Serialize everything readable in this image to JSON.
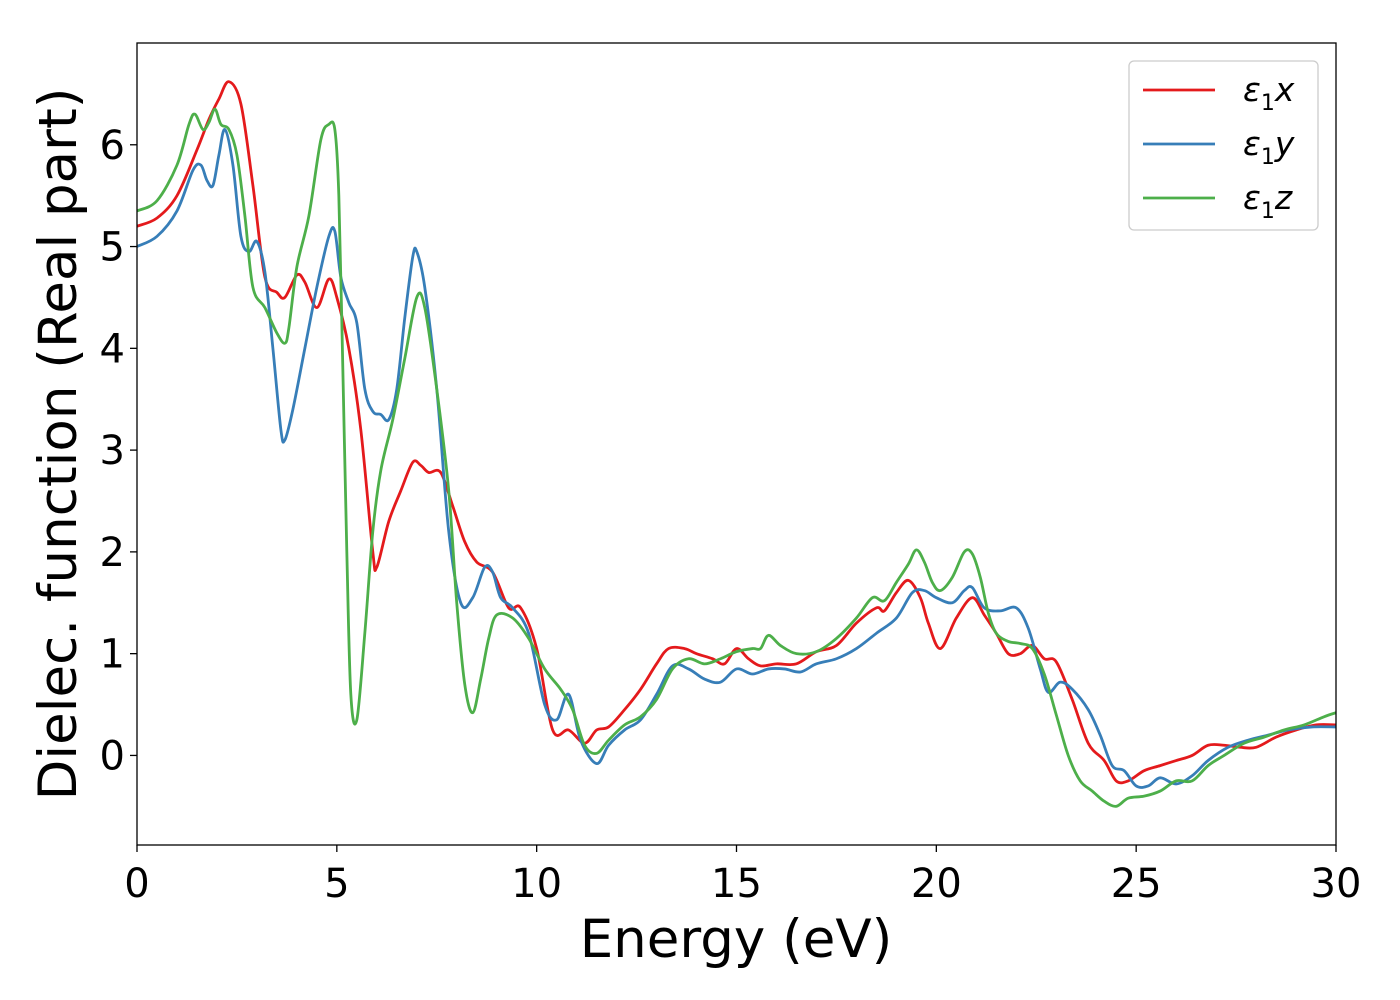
{
  "chart_data": {
    "type": "line",
    "xlabel": "Energy (eV)",
    "ylabel": "Dielec. function (Real part)",
    "xlim": [
      0,
      30
    ],
    "ylim": [
      -0.88,
      7.0
    ],
    "xticks": [
      0,
      5,
      10,
      15,
      20,
      25,
      30
    ],
    "yticks": [
      0,
      1,
      2,
      3,
      4,
      5,
      6
    ],
    "grid": false,
    "legend_position": "top-right",
    "series": [
      {
        "name": "ε1x",
        "legend_base": "ε",
        "legend_sub": "1",
        "legend_tail": "x",
        "color": "#e41a1c",
        "x": [
          0,
          0.5,
          1.0,
          1.5,
          1.8,
          2.05,
          2.3,
          2.6,
          2.9,
          3.2,
          3.5,
          3.7,
          4.0,
          4.2,
          4.5,
          4.8,
          5.0,
          5.3,
          5.6,
          5.9,
          6.0,
          6.3,
          6.6,
          6.9,
          7.1,
          7.3,
          7.6,
          7.9,
          8.2,
          8.5,
          8.9,
          9.3,
          9.6,
          10.0,
          10.4,
          10.8,
          11.2,
          11.5,
          11.8,
          12.2,
          12.6,
          13.0,
          13.3,
          13.7,
          14.0,
          14.4,
          14.7,
          15.0,
          15.3,
          15.6,
          16.0,
          16.5,
          17.0,
          17.5,
          18.0,
          18.5,
          18.7,
          19.0,
          19.3,
          19.6,
          19.8,
          20.1,
          20.5,
          20.9,
          21.2,
          21.5,
          21.8,
          22.1,
          22.4,
          22.7,
          23.0,
          23.4,
          23.8,
          24.2,
          24.5,
          24.8,
          25.2,
          25.6,
          26.0,
          26.4,
          26.8,
          27.2,
          27.6,
          28.0,
          28.5,
          29.0,
          29.5,
          30.0
        ],
        "values": [
          5.2,
          5.28,
          5.5,
          5.95,
          6.25,
          6.45,
          6.62,
          6.4,
          5.6,
          4.7,
          4.55,
          4.5,
          4.72,
          4.65,
          4.4,
          4.68,
          4.5,
          4.0,
          3.2,
          2.0,
          1.85,
          2.3,
          2.6,
          2.88,
          2.85,
          2.78,
          2.78,
          2.45,
          2.1,
          1.9,
          1.8,
          1.45,
          1.45,
          1.05,
          0.25,
          0.25,
          0.12,
          0.25,
          0.28,
          0.45,
          0.65,
          0.9,
          1.05,
          1.05,
          1.0,
          0.95,
          0.9,
          1.05,
          0.95,
          0.88,
          0.9,
          0.9,
          1.02,
          1.08,
          1.3,
          1.45,
          1.42,
          1.6,
          1.72,
          1.55,
          1.3,
          1.05,
          1.35,
          1.55,
          1.38,
          1.2,
          1.0,
          1.0,
          1.08,
          0.95,
          0.92,
          0.55,
          0.12,
          -0.05,
          -0.25,
          -0.25,
          -0.15,
          -0.1,
          -0.05,
          0.0,
          0.1,
          0.1,
          0.08,
          0.08,
          0.18,
          0.25,
          0.3,
          0.3
        ]
      },
      {
        "name": "ε1y",
        "legend_base": "ε",
        "legend_sub": "1",
        "legend_tail": "y",
        "color": "#377eb8",
        "x": [
          0,
          0.5,
          1.0,
          1.4,
          1.6,
          1.75,
          1.9,
          2.05,
          2.2,
          2.4,
          2.6,
          2.8,
          3.0,
          3.2,
          3.4,
          3.6,
          3.7,
          3.9,
          4.2,
          4.5,
          4.8,
          4.95,
          5.1,
          5.3,
          5.5,
          5.7,
          5.9,
          6.1,
          6.3,
          6.5,
          6.7,
          6.9,
          7.0,
          7.2,
          7.5,
          7.8,
          8.1,
          8.4,
          8.7,
          8.9,
          9.1,
          9.4,
          9.8,
          10.2,
          10.5,
          10.8,
          11.1,
          11.5,
          11.8,
          12.2,
          12.6,
          13.0,
          13.4,
          13.8,
          14.2,
          14.6,
          15.0,
          15.4,
          15.8,
          16.2,
          16.6,
          17.0,
          17.5,
          18.0,
          18.5,
          19.0,
          19.4,
          19.7,
          20.0,
          20.4,
          20.7,
          20.9,
          21.2,
          21.6,
          22.0,
          22.3,
          22.6,
          22.8,
          23.1,
          23.4,
          23.8,
          24.1,
          24.4,
          24.7,
          25.0,
          25.3,
          25.6,
          26.0,
          26.4,
          26.8,
          27.3,
          27.8,
          28.3,
          28.8,
          29.4,
          30.0
        ],
        "values": [
          5.0,
          5.1,
          5.35,
          5.75,
          5.8,
          5.65,
          5.6,
          5.9,
          6.15,
          5.8,
          5.1,
          4.95,
          5.05,
          4.75,
          4.0,
          3.2,
          3.1,
          3.4,
          4.0,
          4.6,
          5.1,
          5.15,
          4.7,
          4.45,
          4.25,
          3.6,
          3.38,
          3.35,
          3.3,
          3.6,
          4.3,
          4.9,
          4.95,
          4.6,
          3.6,
          2.2,
          1.5,
          1.55,
          1.85,
          1.8,
          1.55,
          1.45,
          1.2,
          0.5,
          0.35,
          0.6,
          0.15,
          -0.08,
          0.1,
          0.25,
          0.35,
          0.6,
          0.88,
          0.85,
          0.75,
          0.72,
          0.85,
          0.8,
          0.85,
          0.85,
          0.82,
          0.9,
          0.95,
          1.05,
          1.2,
          1.35,
          1.6,
          1.62,
          1.55,
          1.5,
          1.62,
          1.65,
          1.45,
          1.42,
          1.45,
          1.25,
          0.85,
          0.62,
          0.72,
          0.65,
          0.45,
          0.2,
          -0.1,
          -0.15,
          -0.3,
          -0.3,
          -0.22,
          -0.28,
          -0.2,
          -0.05,
          0.08,
          0.15,
          0.2,
          0.25,
          0.28,
          0.28
        ]
      },
      {
        "name": "ε1z",
        "legend_base": "ε",
        "legend_sub": "1",
        "legend_tail": "z",
        "color": "#4daf4a",
        "x": [
          0,
          0.5,
          1.0,
          1.3,
          1.45,
          1.65,
          1.8,
          1.95,
          2.1,
          2.3,
          2.5,
          2.7,
          2.9,
          3.2,
          3.5,
          3.7,
          3.8,
          4.0,
          4.3,
          4.6,
          4.8,
          4.95,
          5.05,
          5.15,
          5.25,
          5.35,
          5.5,
          5.7,
          5.9,
          6.1,
          6.4,
          6.7,
          7.0,
          7.2,
          7.5,
          7.8,
          8.0,
          8.2,
          8.4,
          8.6,
          8.8,
          9.0,
          9.4,
          9.8,
          10.2,
          10.6,
          10.9,
          11.2,
          11.5,
          11.8,
          12.2,
          12.6,
          13.0,
          13.4,
          13.8,
          14.2,
          14.6,
          15.0,
          15.4,
          15.6,
          15.8,
          16.1,
          16.5,
          17.0,
          17.5,
          18.0,
          18.4,
          18.7,
          19.0,
          19.3,
          19.5,
          19.7,
          19.9,
          20.1,
          20.4,
          20.7,
          20.9,
          21.1,
          21.3,
          21.5,
          21.8,
          22.1,
          22.4,
          22.7,
          23.0,
          23.3,
          23.6,
          23.9,
          24.2,
          24.5,
          24.8,
          25.2,
          25.6,
          26.0,
          26.4,
          26.8,
          27.2,
          27.7,
          28.2,
          28.7,
          29.2,
          29.7,
          30.0
        ],
        "values": [
          5.35,
          5.45,
          5.8,
          6.2,
          6.3,
          6.15,
          6.22,
          6.35,
          6.2,
          6.15,
          5.9,
          5.3,
          4.6,
          4.4,
          4.15,
          4.05,
          4.2,
          4.8,
          5.3,
          6.05,
          6.2,
          6.15,
          5.5,
          3.8,
          2.0,
          0.6,
          0.35,
          1.2,
          2.2,
          2.8,
          3.3,
          3.9,
          4.5,
          4.4,
          3.6,
          2.6,
          1.5,
          0.7,
          0.42,
          0.75,
          1.15,
          1.38,
          1.35,
          1.15,
          0.85,
          0.65,
          0.45,
          0.1,
          0.02,
          0.15,
          0.3,
          0.38,
          0.55,
          0.85,
          0.95,
          0.9,
          0.95,
          1.02,
          1.05,
          1.05,
          1.18,
          1.08,
          1.0,
          1.02,
          1.15,
          1.35,
          1.55,
          1.52,
          1.7,
          1.88,
          2.02,
          1.9,
          1.7,
          1.62,
          1.75,
          2.0,
          1.98,
          1.75,
          1.4,
          1.2,
          1.12,
          1.1,
          1.05,
          0.8,
          0.4,
          0.0,
          -0.25,
          -0.35,
          -0.45,
          -0.5,
          -0.42,
          -0.4,
          -0.35,
          -0.25,
          -0.25,
          -0.1,
          0.0,
          0.12,
          0.18,
          0.25,
          0.3,
          0.38,
          0.42
        ]
      }
    ]
  }
}
